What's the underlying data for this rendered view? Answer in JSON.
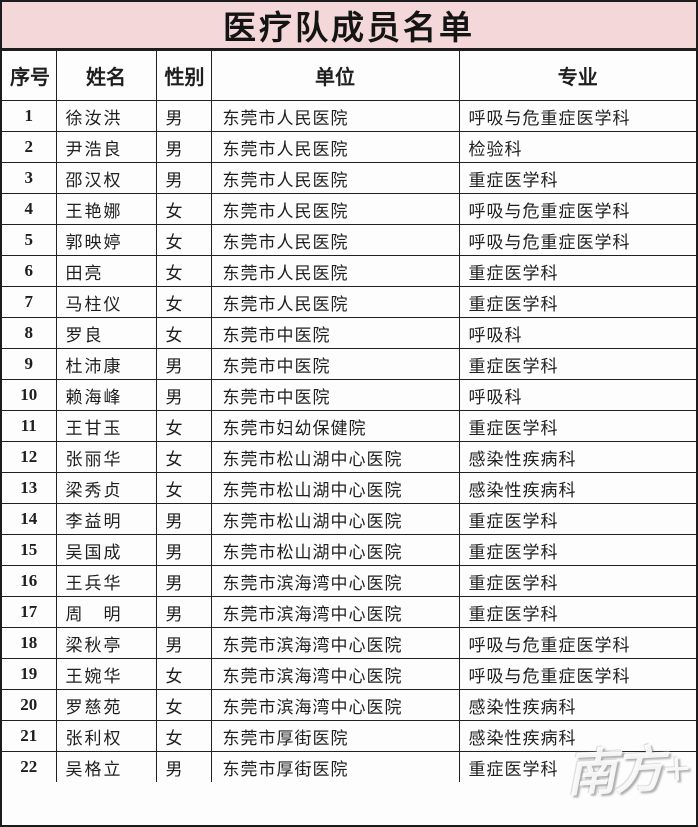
{
  "title": "医疗队成员名单",
  "watermark": "南方+",
  "colors": {
    "title_bg": "#f3d7d9",
    "border": "#1c1c1c",
    "text": "#1e1e1e"
  },
  "table": {
    "columns": [
      {
        "key": "no",
        "label": "序号"
      },
      {
        "key": "name",
        "label": "姓名"
      },
      {
        "key": "gender",
        "label": "性别"
      },
      {
        "key": "unit",
        "label": "单位"
      },
      {
        "key": "specialty",
        "label": "专业"
      }
    ],
    "rows": [
      {
        "no": "1",
        "name": "徐汝洪",
        "gender": "男",
        "unit": "东莞市人民医院",
        "specialty": "呼吸与危重症医学科"
      },
      {
        "no": "2",
        "name": "尹浩良",
        "gender": "男",
        "unit": "东莞市人民医院",
        "specialty": "检验科"
      },
      {
        "no": "3",
        "name": "邵汉权",
        "gender": "男",
        "unit": "东莞市人民医院",
        "specialty": "重症医学科"
      },
      {
        "no": "4",
        "name": "王艳娜",
        "gender": "女",
        "unit": "东莞市人民医院",
        "specialty": "呼吸与危重症医学科"
      },
      {
        "no": "5",
        "name": "郭映婷",
        "gender": "女",
        "unit": "东莞市人民医院",
        "specialty": "呼吸与危重症医学科"
      },
      {
        "no": "6",
        "name": "田亮",
        "gender": "女",
        "unit": "东莞市人民医院",
        "specialty": "重症医学科"
      },
      {
        "no": "7",
        "name": "马柱仪",
        "gender": "女",
        "unit": "东莞市人民医院",
        "specialty": "重症医学科"
      },
      {
        "no": "8",
        "name": "罗良",
        "gender": "女",
        "unit": "东莞市中医院",
        "specialty": "呼吸科"
      },
      {
        "no": "9",
        "name": "杜沛康",
        "gender": "男",
        "unit": "东莞市中医院",
        "specialty": "重症医学科"
      },
      {
        "no": "10",
        "name": "赖海峰",
        "gender": "男",
        "unit": "东莞市中医院",
        "specialty": "呼吸科"
      },
      {
        "no": "11",
        "name": "王甘玉",
        "gender": "女",
        "unit": "东莞市妇幼保健院",
        "specialty": "重症医学科"
      },
      {
        "no": "12",
        "name": "张丽华",
        "gender": "女",
        "unit": "东莞市松山湖中心医院",
        "specialty": "感染性疾病科"
      },
      {
        "no": "13",
        "name": "梁秀贞",
        "gender": "女",
        "unit": "东莞市松山湖中心医院",
        "specialty": "感染性疾病科"
      },
      {
        "no": "14",
        "name": "李益明",
        "gender": "男",
        "unit": "东莞市松山湖中心医院",
        "specialty": "重症医学科"
      },
      {
        "no": "15",
        "name": "吴国成",
        "gender": "男",
        "unit": "东莞市松山湖中心医院",
        "specialty": "重症医学科"
      },
      {
        "no": "16",
        "name": "王兵华",
        "gender": "男",
        "unit": "东莞市滨海湾中心医院",
        "specialty": "重症医学科"
      },
      {
        "no": "17",
        "name": "周　明",
        "gender": "男",
        "unit": "东莞市滨海湾中心医院",
        "specialty": "重症医学科"
      },
      {
        "no": "18",
        "name": "梁秋亭",
        "gender": "男",
        "unit": "东莞市滨海湾中心医院",
        "specialty": "呼吸与危重症医学科"
      },
      {
        "no": "19",
        "name": "王婉华",
        "gender": "女",
        "unit": "东莞市滨海湾中心医院",
        "specialty": "呼吸与危重症医学科"
      },
      {
        "no": "20",
        "name": "罗慈苑",
        "gender": "女",
        "unit": "东莞市滨海湾中心医院",
        "specialty": "感染性疾病科"
      },
      {
        "no": "21",
        "name": "张利权",
        "gender": "女",
        "unit": "东莞市厚街医院",
        "specialty": "感染性疾病科"
      },
      {
        "no": "22",
        "name": "吴格立",
        "gender": "男",
        "unit": "东莞市厚街医院",
        "specialty": "重症医学科"
      }
    ]
  }
}
